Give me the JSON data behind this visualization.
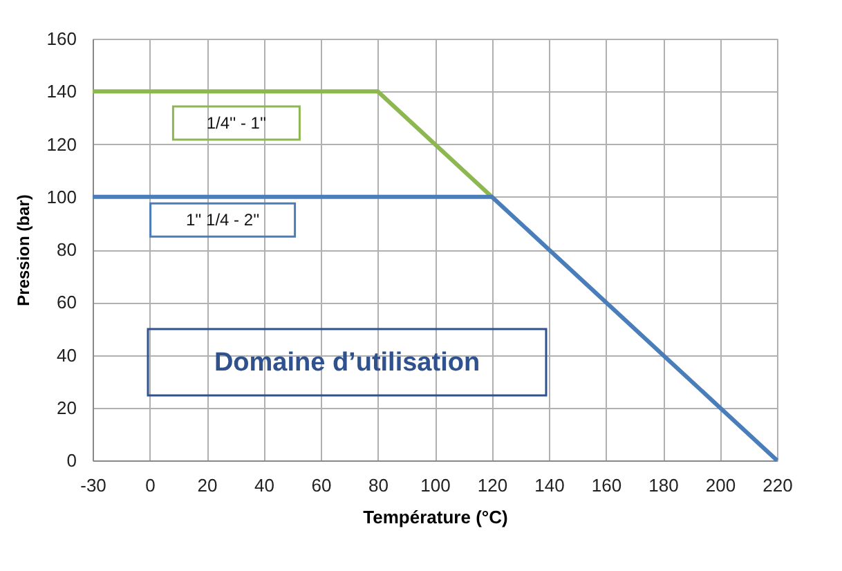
{
  "chart_data": {
    "type": "line",
    "xlabel": "Température (°C)",
    "ylabel": "Pression (bar)",
    "categories": [
      "-30",
      "0",
      "20",
      "40",
      "60",
      "80",
      "100",
      "120",
      "140",
      "160",
      "180",
      "200",
      "220"
    ],
    "series": [
      {
        "name": "1/4'' - 1''",
        "color": "#8db750",
        "values": [
          140,
          140,
          140,
          140,
          140,
          140,
          120,
          100,
          null,
          null,
          null,
          null,
          null
        ]
      },
      {
        "name": "1'' 1/4 - 2''",
        "color": "#4a7ebb",
        "values": [
          100,
          100,
          100,
          100,
          100,
          100,
          100,
          100,
          80,
          60,
          40,
          20,
          0
        ]
      }
    ],
    "ylim": [
      0,
      160
    ],
    "yticks": [
      0,
      20,
      40,
      60,
      80,
      100,
      120,
      140,
      160
    ],
    "grid": true,
    "legend": false,
    "annotations": [
      "Domaine d’utilisation"
    ]
  }
}
